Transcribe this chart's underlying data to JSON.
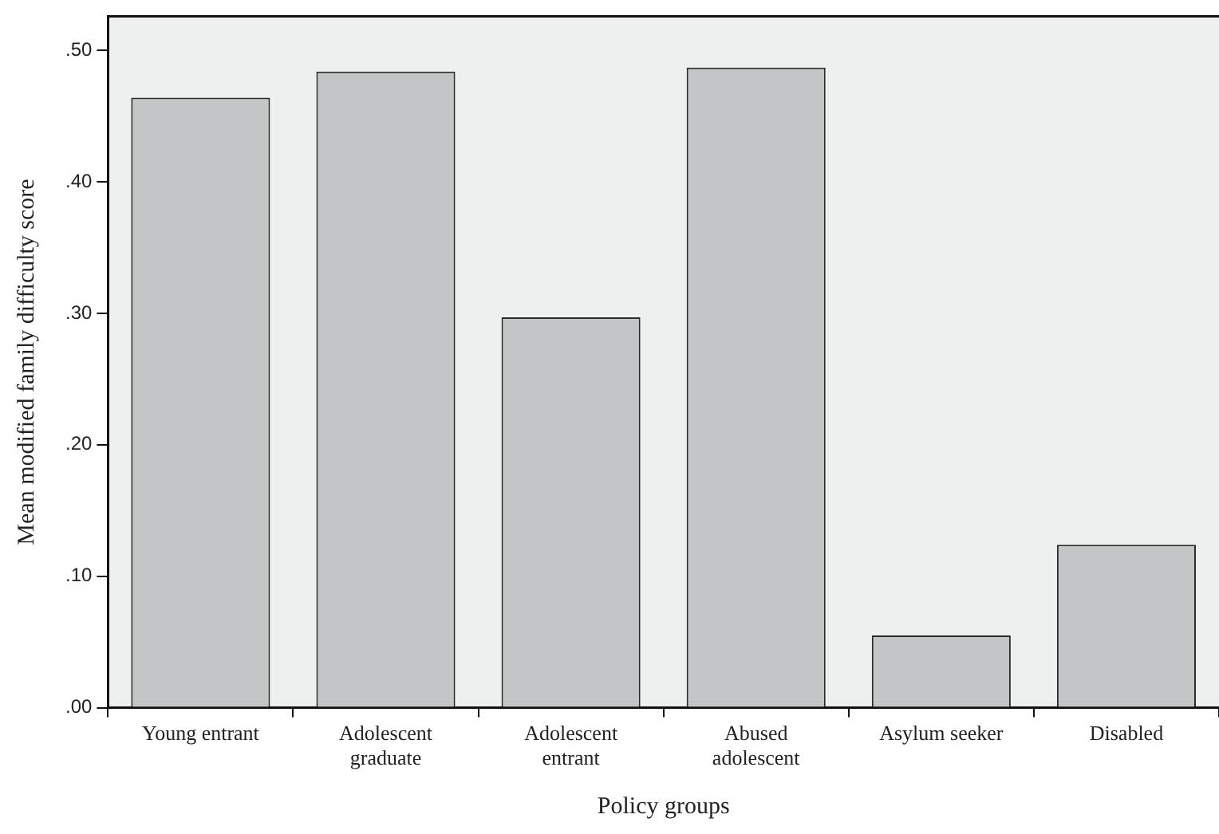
{
  "chart_data": {
    "type": "bar",
    "xlabel": "Policy groups",
    "ylabel": "Mean modified family difficulty score",
    "categories": [
      "Young entrant",
      "Adolescent\ngraduate",
      "Adolescent\nentrant",
      "Abused\nadolescent",
      "Asylum seeker",
      "Disabled"
    ],
    "values": [
      0.464,
      0.484,
      0.297,
      0.487,
      0.055,
      0.124
    ],
    "color": "#c4c5c7",
    "ylim": [
      0,
      0.526
    ],
    "yticks": [
      {
        "value": 0,
        "label": ".00"
      },
      {
        "value": 0.1,
        "label": ".10"
      },
      {
        "value": 0.2,
        "label": ".20"
      },
      {
        "value": 0.3,
        "label": ".30"
      },
      {
        "value": 0.4,
        "label": ".40"
      },
      {
        "value": 0.5,
        "label": ".50"
      }
    ],
    "grid": false,
    "legend": false
  }
}
